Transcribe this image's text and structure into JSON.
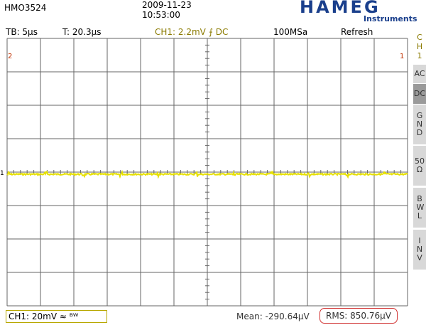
{
  "header": {
    "model": "HMO3524",
    "date": "2009-11-23",
    "time": "10:53:00",
    "brand": "HAMEG",
    "brand_sub": "Instruments"
  },
  "status_bar": {
    "timebase": "TB: 5µs",
    "trigger_time": "T: 20.3µs",
    "trigger": "CH1: 2.2mV ⨍ DC",
    "sample_rate": "100MSa",
    "mode": "Refresh"
  },
  "markers": {
    "left": "2",
    "right": "1",
    "level": "1"
  },
  "side_menu": {
    "title": "CH 1",
    "items": [
      "AC",
      "DC",
      "GND",
      "50 Ω",
      "BWL",
      "INV"
    ]
  },
  "footer": {
    "channel": "CH1: 20mV ≈ ᴮᵂ",
    "mean": "Mean: -290.64µV",
    "rms": "RMS: 850.76µV"
  }
}
